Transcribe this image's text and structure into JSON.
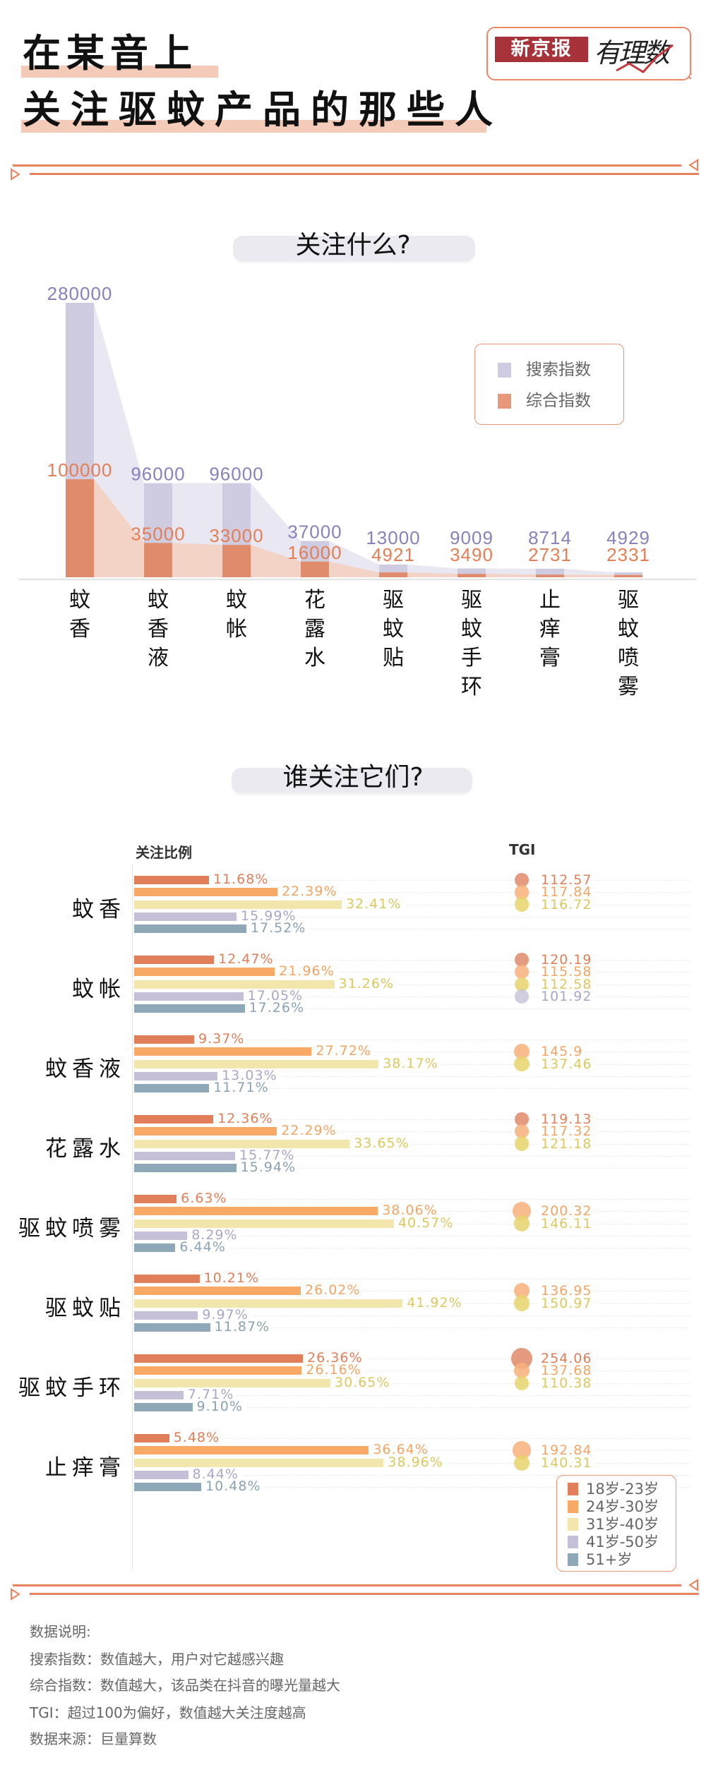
{
  "header": {
    "title_line1": "在某音上",
    "title_line2": "关注驱蚊产品的那些人",
    "logo_brand": "新京报",
    "logo_column": "有理数"
  },
  "section1": {
    "heading": "关注什么?"
  },
  "section2": {
    "heading": "谁关注它们?",
    "col_ratio": "关注比例",
    "col_tgi": "TGI"
  },
  "colors": {
    "search_bar": "#cfcbe0",
    "search_area": "#e9e7f1",
    "search_label": "#8a80bd",
    "composite_bar": "#df8b6c",
    "composite_area": "#f2d3c6",
    "composite_label": "#e47f55",
    "divider": "#e8825f",
    "age_bars": [
      "#e07f5a",
      "#f9a966",
      "#f3e6ad",
      "#c5bfd8",
      "#8ea8b8"
    ],
    "age_text": [
      "#e07f5a",
      "#f4a565",
      "#dcc85e",
      "#aca6c6",
      "#8aa2b3"
    ],
    "tgi_dots": [
      "#e08a6a",
      "#f7b07a",
      "#e6d36b",
      "#c9c5da",
      "#8ea8b8"
    ]
  },
  "chart_data": [
    {
      "type": "bar",
      "categories": [
        "蚊香",
        "蚊香液",
        "蚊帐",
        "花露水",
        "驱蚊贴",
        "驱蚊手环",
        "止痒膏",
        "驱蚊喷雾"
      ],
      "series": [
        {
          "name": "搜索指数",
          "values": [
            280000,
            96000,
            96000,
            37000,
            13000,
            9009,
            8714,
            4929
          ]
        },
        {
          "name": "综合指数",
          "values": [
            100000,
            35000,
            33000,
            16000,
            4921,
            3490,
            2731,
            2331
          ]
        }
      ],
      "legend": "top-right",
      "grid": false
    },
    {
      "type": "bar",
      "orientation": "horizontal",
      "categories": [
        "蚊香",
        "蚊帐",
        "蚊香液",
        "花露水",
        "驱蚊喷雾",
        "驱蚊贴",
        "驱蚊手环",
        "止痒膏"
      ],
      "unit": "%",
      "series": [
        {
          "name": "18岁-23岁",
          "values": [
            11.68,
            12.47,
            9.37,
            12.36,
            6.63,
            10.21,
            26.36,
            5.48
          ]
        },
        {
          "name": "24岁-30岁",
          "values": [
            22.39,
            21.96,
            27.72,
            22.29,
            38.06,
            26.02,
            26.16,
            36.64
          ]
        },
        {
          "name": "31岁-40岁",
          "values": [
            32.41,
            31.26,
            38.17,
            33.65,
            40.57,
            41.92,
            30.65,
            38.96
          ]
        },
        {
          "name": "41岁-50岁",
          "values": [
            15.99,
            17.05,
            13.03,
            15.77,
            8.29,
            9.97,
            7.71,
            8.44
          ]
        },
        {
          "name": "51+岁",
          "values": [
            17.52,
            17.26,
            11.71,
            15.94,
            6.44,
            11.87,
            9.1,
            10.48
          ]
        }
      ],
      "tgi": [
        [
          112.57,
          117.84,
          116.72,
          null,
          null
        ],
        [
          120.19,
          115.58,
          112.58,
          101.92,
          null
        ],
        [
          null,
          145.9,
          137.46,
          null,
          null
        ],
        [
          119.13,
          117.32,
          121.18,
          null,
          null
        ],
        [
          null,
          200.32,
          146.11,
          null,
          null
        ],
        [
          null,
          136.95,
          150.97,
          null,
          null
        ],
        [
          254.06,
          137.68,
          110.38,
          null,
          null
        ],
        [
          null,
          192.84,
          140.31,
          null,
          null
        ]
      ],
      "legend": "bottom-right"
    }
  ],
  "notes": {
    "heading": "数据说明:",
    "lines": [
      "搜索指数：数值越大，用户对它越感兴趣",
      "综合指数：数值越大，该品类在抖音的曝光量越大",
      "TGI：超过100为偏好，数值越大关注度越高",
      "数据来源：巨量算数"
    ]
  }
}
